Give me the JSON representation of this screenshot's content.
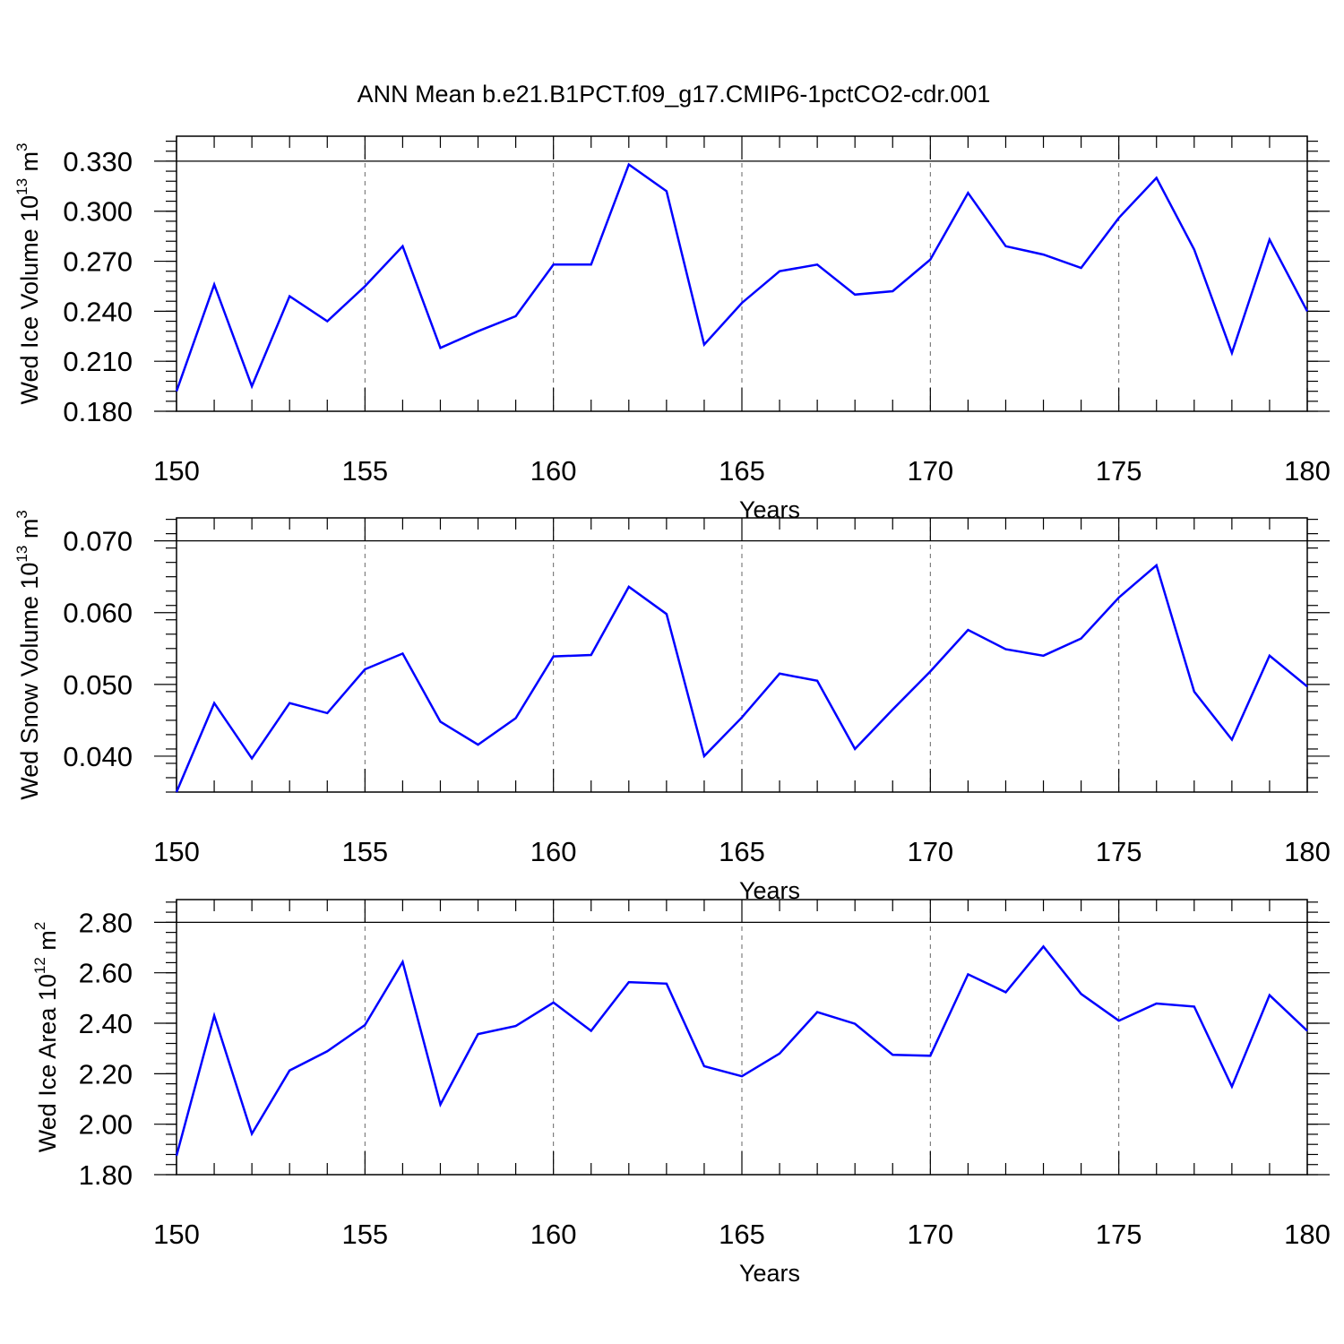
{
  "title": "ANN Mean b.e21.B1PCT.f09_g17.CMIP6-1pctCO2-cdr.001",
  "chart_data": [
    {
      "type": "line",
      "x": [
        150,
        151,
        152,
        153,
        154,
        155,
        156,
        157,
        158,
        159,
        160,
        161,
        162,
        163,
        164,
        165,
        166,
        167,
        168,
        169,
        170,
        171,
        172,
        173,
        174,
        175,
        176,
        177,
        178,
        179,
        180
      ],
      "series": [
        {
          "values": [
            0.192,
            0.256,
            0.195,
            0.249,
            0.234,
            0.255,
            0.279,
            0.218,
            0.228,
            0.237,
            0.268,
            0.268,
            0.328,
            0.312,
            0.22,
            0.245,
            0.264,
            0.268,
            0.25,
            0.252,
            0.271,
            0.311,
            0.279,
            0.274,
            0.266,
            0.296,
            0.32,
            0.277,
            0.215,
            0.283,
            0.24
          ],
          "color": "#0000ff"
        }
      ],
      "xlabel": "Years",
      "ylabel": {
        "text": "Wed Ice Volume 10",
        "exp": "13",
        "unit": " m",
        "unit_exp": "3"
      },
      "xlim": [
        150,
        180
      ],
      "ylim": [
        0.18,
        0.345
      ],
      "xticks": [
        150,
        155,
        160,
        165,
        170,
        175,
        180
      ],
      "xtick_labels": [
        "150",
        "155",
        "160",
        "165",
        "170",
        "175",
        "180"
      ],
      "yticks": [
        0.18,
        0.21,
        0.24,
        0.27,
        0.3,
        0.33
      ],
      "ytick_labels": [
        "0.180",
        "0.210",
        "0.240",
        "0.270",
        "0.300",
        "0.330"
      ],
      "yminor_step": 0.006,
      "grid": "vertical dashed at major x ticks",
      "reference_line": 0.33
    },
    {
      "type": "line",
      "x": [
        150,
        151,
        152,
        153,
        154,
        155,
        156,
        157,
        158,
        159,
        160,
        161,
        162,
        163,
        164,
        165,
        166,
        167,
        168,
        169,
        170,
        171,
        172,
        173,
        174,
        175,
        176,
        177,
        178,
        179,
        180
      ],
      "series": [
        {
          "values": [
            0.035,
            0.0474,
            0.0397,
            0.0474,
            0.046,
            0.0521,
            0.0543,
            0.0448,
            0.0416,
            0.0453,
            0.0539,
            0.0541,
            0.0636,
            0.0598,
            0.04,
            0.0454,
            0.0515,
            0.0505,
            0.041,
            0.0465,
            0.0518,
            0.0576,
            0.0549,
            0.054,
            0.0564,
            0.0621,
            0.0666,
            0.049,
            0.0423,
            0.054,
            0.0497
          ],
          "color": "#0000ff"
        }
      ],
      "xlabel": "Years",
      "ylabel": {
        "text": "Wed Snow Volume 10",
        "exp": "13",
        "unit": " m",
        "unit_exp": "3"
      },
      "xlim": [
        150,
        180
      ],
      "ylim": [
        0.035,
        0.0732
      ],
      "xticks": [
        150,
        155,
        160,
        165,
        170,
        175,
        180
      ],
      "xtick_labels": [
        "150",
        "155",
        "160",
        "165",
        "170",
        "175",
        "180"
      ],
      "yticks": [
        0.04,
        0.05,
        0.06,
        0.07
      ],
      "ytick_labels": [
        "0.040",
        "0.050",
        "0.060",
        "0.070"
      ],
      "yminor_step": 0.002,
      "grid": "vertical dashed at major x ticks",
      "reference_line": 0.07
    },
    {
      "type": "line",
      "x": [
        150,
        151,
        152,
        153,
        154,
        155,
        156,
        157,
        158,
        159,
        160,
        161,
        162,
        163,
        164,
        165,
        166,
        167,
        168,
        169,
        170,
        171,
        172,
        173,
        174,
        175,
        176,
        177,
        178,
        179,
        180
      ],
      "series": [
        {
          "values": [
            1.875,
            2.43,
            1.962,
            2.213,
            2.289,
            2.393,
            2.643,
            2.078,
            2.357,
            2.389,
            2.482,
            2.37,
            2.563,
            2.557,
            2.23,
            2.19,
            2.28,
            2.444,
            2.398,
            2.275,
            2.271,
            2.594,
            2.523,
            2.704,
            2.516,
            2.41,
            2.478,
            2.466,
            2.149,
            2.511,
            2.37
          ],
          "color": "#0000ff"
        }
      ],
      "xlabel": "Years",
      "ylabel": {
        "text": "Wed Ice Area 10",
        "exp": "12",
        "unit": " m",
        "unit_exp": "2"
      },
      "xlim": [
        150,
        180
      ],
      "ylim": [
        1.8,
        2.89
      ],
      "xticks": [
        150,
        155,
        160,
        165,
        170,
        175,
        180
      ],
      "xtick_labels": [
        "150",
        "155",
        "160",
        "165",
        "170",
        "175",
        "180"
      ],
      "yticks": [
        1.8,
        2.0,
        2.2,
        2.4,
        2.6,
        2.8
      ],
      "ytick_labels": [
        "1.80",
        "2.00",
        "2.20",
        "2.40",
        "2.60",
        "2.80"
      ],
      "yminor_step": 0.04,
      "grid": "vertical dashed at major x ticks",
      "reference_line": 2.8
    }
  ]
}
